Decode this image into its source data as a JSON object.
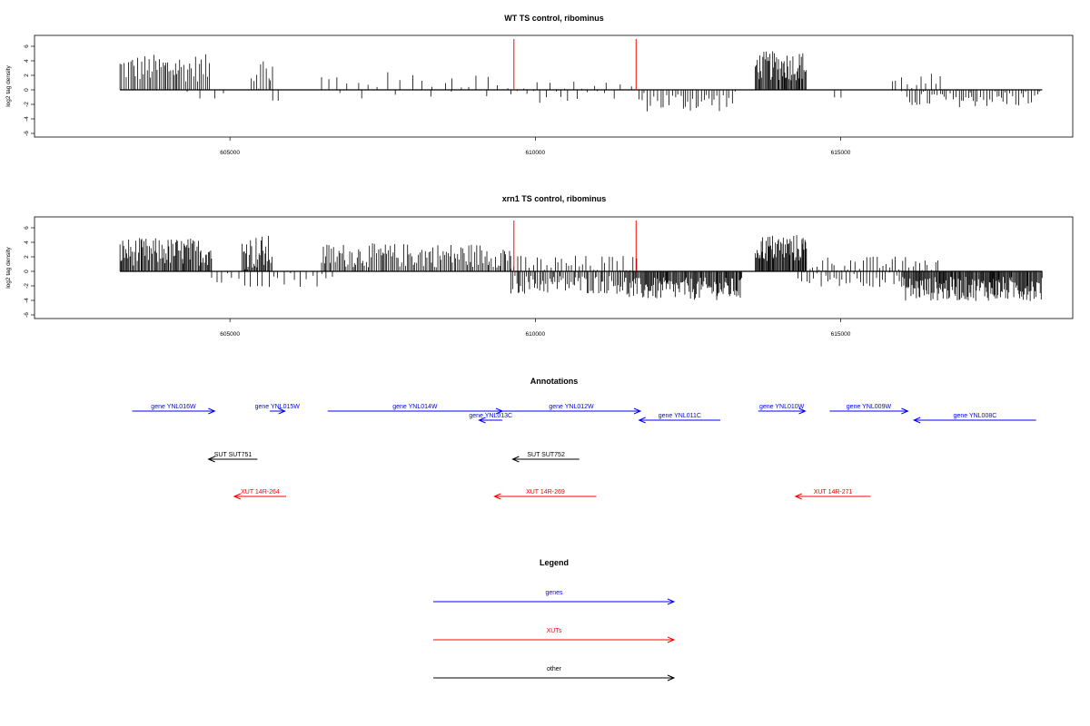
{
  "chart_data": [
    {
      "type": "bar",
      "title": "WT TS control, ribominus",
      "ylabel": "log2 tag density",
      "ylim": [
        -6,
        7
      ],
      "yticks": [
        "6",
        "4",
        "2",
        "0",
        "-2",
        "-4",
        "-6"
      ],
      "xlim": [
        601800,
        618800
      ],
      "xticks": [
        "605000",
        "610000",
        "615000"
      ],
      "grid": false,
      "markers": [
        609650,
        611650
      ],
      "segments": [
        {
          "start": 603200,
          "end": 604700,
          "mean": 3.0,
          "spread": 1.6,
          "step": 30,
          "strand": "+"
        },
        {
          "start": 604300,
          "end": 605000,
          "mean": -0.4,
          "spread": 0.8,
          "step": 180,
          "strand": "-"
        },
        {
          "start": 605350,
          "end": 605700,
          "mean": 2.5,
          "spread": 2.0,
          "step": 35,
          "strand": "+"
        },
        {
          "start": 605700,
          "end": 605800,
          "mean": -1.8,
          "spread": 0.8,
          "step": 90,
          "strand": "-"
        },
        {
          "start": 606500,
          "end": 609400,
          "mean": 1.3,
          "spread": 1.0,
          "step": 170,
          "strand": "+"
        },
        {
          "start": 606800,
          "end": 609500,
          "mean": -0.4,
          "spread": 0.8,
          "step": 420,
          "strand": "-"
        },
        {
          "start": 609550,
          "end": 611600,
          "mean": 0.6,
          "spread": 0.8,
          "step": 210,
          "strand": "+"
        },
        {
          "start": 609600,
          "end": 611400,
          "mean": -0.8,
          "spread": 0.9,
          "step": 120,
          "strand": "-"
        },
        {
          "start": 611700,
          "end": 613300,
          "mean": -1.6,
          "spread": 1.2,
          "step": 45,
          "strand": "-"
        },
        {
          "start": 613600,
          "end": 614450,
          "mean": 3.3,
          "spread": 1.7,
          "step": 16,
          "strand": "+"
        },
        {
          "start": 614900,
          "end": 615100,
          "mean": -1.0,
          "spread": 1.0,
          "step": 110,
          "strand": "-"
        },
        {
          "start": 615850,
          "end": 616700,
          "mean": 1.1,
          "spread": 1.0,
          "step": 75,
          "strand": "+"
        },
        {
          "start": 616000,
          "end": 618300,
          "mean": -1.2,
          "spread": 1.0,
          "step": 40,
          "strand": "-"
        }
      ]
    },
    {
      "type": "bar",
      "title": "xrn1 TS control, ribominus",
      "ylabel": "log2 tag density",
      "ylim": [
        -6,
        7
      ],
      "yticks": [
        "6",
        "4",
        "2",
        "0",
        "-2",
        "-4",
        "-6"
      ],
      "xlim": [
        601800,
        618800
      ],
      "xticks": [
        "605000",
        "610000",
        "615000"
      ],
      "grid": false,
      "markers": [
        609650,
        611650
      ],
      "segments": [
        {
          "start": 603200,
          "end": 604700,
          "mean": 2.7,
          "spread": 1.6,
          "step": 18,
          "strand": "+"
        },
        {
          "start": 604700,
          "end": 606700,
          "mean": -1.1,
          "spread": 0.9,
          "step": 90,
          "strand": "-"
        },
        {
          "start": 605200,
          "end": 605700,
          "mean": 2.6,
          "spread": 2.0,
          "step": 18,
          "strand": "+"
        },
        {
          "start": 606500,
          "end": 609600,
          "mean": 2.2,
          "spread": 1.4,
          "step": 26,
          "strand": "+"
        },
        {
          "start": 609600,
          "end": 611700,
          "mean": 1.0,
          "spread": 1.0,
          "step": 60,
          "strand": "+"
        },
        {
          "start": 609600,
          "end": 611500,
          "mean": -1.8,
          "spread": 1.1,
          "step": 28,
          "strand": "-"
        },
        {
          "start": 611500,
          "end": 613400,
          "mean": -2.4,
          "spread": 1.3,
          "step": 16,
          "strand": "-"
        },
        {
          "start": 613600,
          "end": 614450,
          "mean": 3.2,
          "spread": 1.6,
          "step": 14,
          "strand": "+"
        },
        {
          "start": 614500,
          "end": 616600,
          "mean": 1.0,
          "spread": 0.9,
          "step": 55,
          "strand": "+"
        },
        {
          "start": 614300,
          "end": 616000,
          "mean": -1.1,
          "spread": 0.9,
          "step": 55,
          "strand": "-"
        },
        {
          "start": 616000,
          "end": 618300,
          "mean": -2.4,
          "spread": 1.4,
          "step": 14,
          "strand": "-"
        }
      ]
    }
  ],
  "annotations": {
    "title": "Annotations",
    "features": [
      {
        "label": "gene YNL016W",
        "start": 603400,
        "end": 604750,
        "strand": "+",
        "color": "#0000ff",
        "row": 0
      },
      {
        "label": "gene YNL015W",
        "start": 605650,
        "end": 605900,
        "strand": "+",
        "color": "#0000ff",
        "row": 0
      },
      {
        "label": "gene YNL014W",
        "start": 606600,
        "end": 609460,
        "strand": "+",
        "color": "#0000ff",
        "row": 0
      },
      {
        "label": "gene YNL013C",
        "start": 609080,
        "end": 609460,
        "strand": "-",
        "color": "#0000ff",
        "row": 1
      },
      {
        "label": "gene YNL012W",
        "start": 609460,
        "end": 611720,
        "strand": "+",
        "color": "#0000ff",
        "row": 0
      },
      {
        "label": "gene YNL011C",
        "start": 611700,
        "end": 613030,
        "strand": "-",
        "color": "#0000ff",
        "row": 1
      },
      {
        "label": "gene YNL010W",
        "start": 613650,
        "end": 614420,
        "strand": "+",
        "color": "#0000ff",
        "row": 0
      },
      {
        "label": "gene YNL009W",
        "start": 614820,
        "end": 616100,
        "strand": "+",
        "color": "#0000ff",
        "row": 0
      },
      {
        "label": "gene YNL008C",
        "start": 616200,
        "end": 618200,
        "strand": "-",
        "color": "#0000ff",
        "row": 1
      },
      {
        "label": "SUT SUT751",
        "start": 604650,
        "end": 605450,
        "strand": "-",
        "color": "#000000",
        "row": 2
      },
      {
        "label": "SUT SUT752",
        "start": 609630,
        "end": 610720,
        "strand": "-",
        "color": "#000000",
        "row": 2
      },
      {
        "label": "XUT 14R-264",
        "start": 605070,
        "end": 605920,
        "strand": "-",
        "color": "#ff0000",
        "row": 3
      },
      {
        "label": "XUT 14R-269",
        "start": 609330,
        "end": 611000,
        "strand": "-",
        "color": "#ff0000",
        "row": 3
      },
      {
        "label": "XUT 14R-271",
        "start": 614260,
        "end": 615490,
        "strand": "-",
        "color": "#ff0000",
        "row": 3
      }
    ]
  },
  "legend": {
    "title": "Legend",
    "items": [
      {
        "label": "genes",
        "color": "#0000ff"
      },
      {
        "label": "XUTs",
        "color": "#ff0000"
      },
      {
        "label": "other",
        "color": "#000000"
      }
    ]
  }
}
